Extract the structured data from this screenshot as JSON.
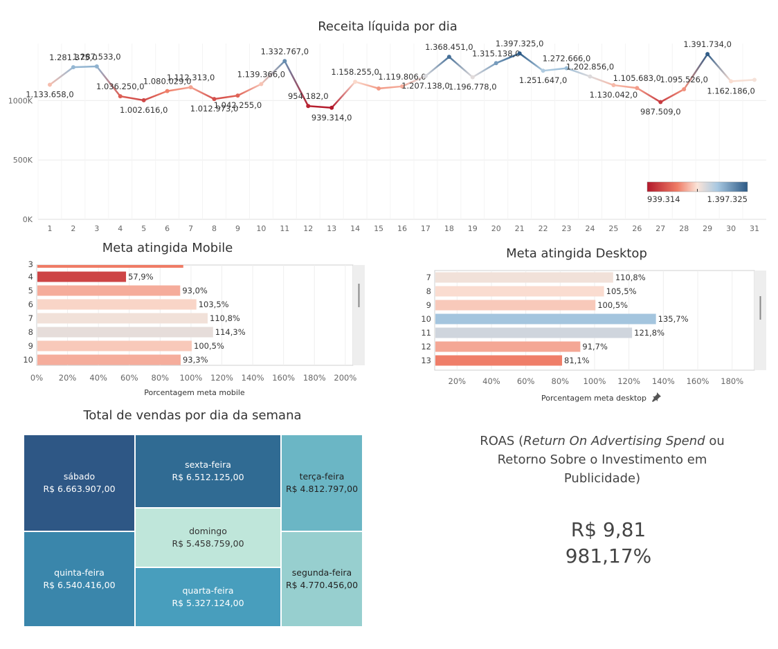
{
  "chart_data": [
    {
      "type": "line",
      "title": "Receita líquida por dia",
      "x": [
        1,
        2,
        3,
        4,
        5,
        6,
        7,
        8,
        9,
        10,
        11,
        12,
        13,
        14,
        15,
        16,
        17,
        18,
        19,
        20,
        21,
        22,
        23,
        24,
        25,
        26,
        27,
        28,
        29,
        30,
        31
      ],
      "values": [
        1133658,
        1281375,
        1287533,
        1036250,
        1002616,
        1080029,
        1112313,
        1012973,
        1042255,
        1139366,
        1332767,
        954182,
        939314,
        1158255,
        1102000,
        1119806,
        1207138,
        1368451,
        1196778,
        1315138,
        1397325,
        1251647,
        1272666,
        1202856,
        1130042,
        1105683,
        987509,
        1095526,
        1391734,
        1162186,
        1175000
      ],
      "data_labels": {
        "1": "1.133.658,0",
        "2": "1.281.375,0",
        "3": "1.287.533,0",
        "4": "1.036.250,0",
        "5": "1.002.616,0",
        "6": "1.080.029,0",
        "7": "1.112.313,0",
        "8": "1.012.973,0",
        "9": "1.042.255,0",
        "10": "1.139.366,0",
        "11": "1.332.767,0",
        "12": "954.182,0",
        "13": "939.314,0",
        "14": "1.158.255,0",
        "16": "1.119.806,0",
        "17": "1.207.138,0",
        "18": "1.368.451,0",
        "19": "1.196.778,0",
        "20": "1.315.138,0",
        "21": "1.397.325,0",
        "22": "1.251.647,0",
        "23": "1.272.666,0",
        "24": "1.202.856,0",
        "25": "1.130.042,0",
        "26": "1.105.683,0",
        "27": "987.509,0",
        "28": "1.095.526,0",
        "29": "1.391.734,0",
        "30": "1.162.186,0"
      },
      "ylim": [
        0,
        1480000
      ],
      "yticks": [
        {
          "v": 0,
          "label": "0K"
        },
        {
          "v": 500000,
          "label": "500K"
        },
        {
          "v": 1000000,
          "label": "1000K"
        }
      ],
      "grid": true,
      "color_legend": {
        "min_label": "939.314",
        "max_label": "1.397.325",
        "position": "bottom-right",
        "min": 939314,
        "max": 1397325
      }
    },
    {
      "type": "bar",
      "title": "Meta atingida Mobile",
      "orientation": "horizontal",
      "categories": [
        "4",
        "5",
        "6",
        "7",
        "8",
        "9",
        "10"
      ],
      "values": [
        57.9,
        93.0,
        103.5,
        110.8,
        114.3,
        100.5,
        93.3
      ],
      "value_labels": [
        "57,9%",
        "93,0%",
        "103,5%",
        "110,8%",
        "114,3%",
        "100,5%",
        "93,3%"
      ],
      "xlabel": "Porcentagem meta mobile",
      "xlim": [
        0,
        205
      ],
      "xticks": [
        "0%",
        "20%",
        "40%",
        "60%",
        "80%",
        "100%",
        "120%",
        "140%",
        "160%",
        "180%",
        "200%"
      ],
      "grid": true
    },
    {
      "type": "bar",
      "title": "Meta atingida Desktop",
      "orientation": "horizontal",
      "categories": [
        "7",
        "8",
        "9",
        "10",
        "11",
        "12",
        "13"
      ],
      "values": [
        110.8,
        105.5,
        100.5,
        135.7,
        121.8,
        91.7,
        81.1
      ],
      "value_labels": [
        "110,8%",
        "105,5%",
        "100,5%",
        "135,7%",
        "121,8%",
        "91,7%",
        "81,1%"
      ],
      "xlabel": "Porcentagem meta desktop",
      "xlim": [
        7,
        193
      ],
      "xticks": [
        "20%",
        "40%",
        "60%",
        "80%",
        "100%",
        "120%",
        "140%",
        "160%",
        "180%"
      ],
      "grid": true
    },
    {
      "type": "treemap",
      "title": "Total de vendas por dia da semana",
      "items": [
        {
          "label": "sábado",
          "value_label": "R$ 6.663.907,00",
          "value": 6663907
        },
        {
          "label": "quinta-feira",
          "value_label": "R$ 6.540.416,00",
          "value": 6540416
        },
        {
          "label": "sexta-feira",
          "value_label": "R$ 6.512.125,00",
          "value": 6512125
        },
        {
          "label": "domingo",
          "value_label": "R$ 5.458.759,00",
          "value": 5458759
        },
        {
          "label": "quarta-feira",
          "value_label": "R$ 5.327.124,00",
          "value": 5327124
        },
        {
          "label": "terça-feira",
          "value_label": "R$ 4.812.797,00",
          "value": 4812797
        },
        {
          "label": "segunda-feira",
          "value_label": "R$ 4.770.456,00",
          "value": 4770456
        }
      ]
    }
  ],
  "roas": {
    "line1_pre": "ROAS (",
    "line1_italic": "Return On Advertising Spend",
    "line1_post": " ou",
    "line2": "Retorno Sobre o Investimento em",
    "line3": "Publicidade)",
    "value_currency": "R$ 9,81",
    "value_percent": "981,17%"
  }
}
